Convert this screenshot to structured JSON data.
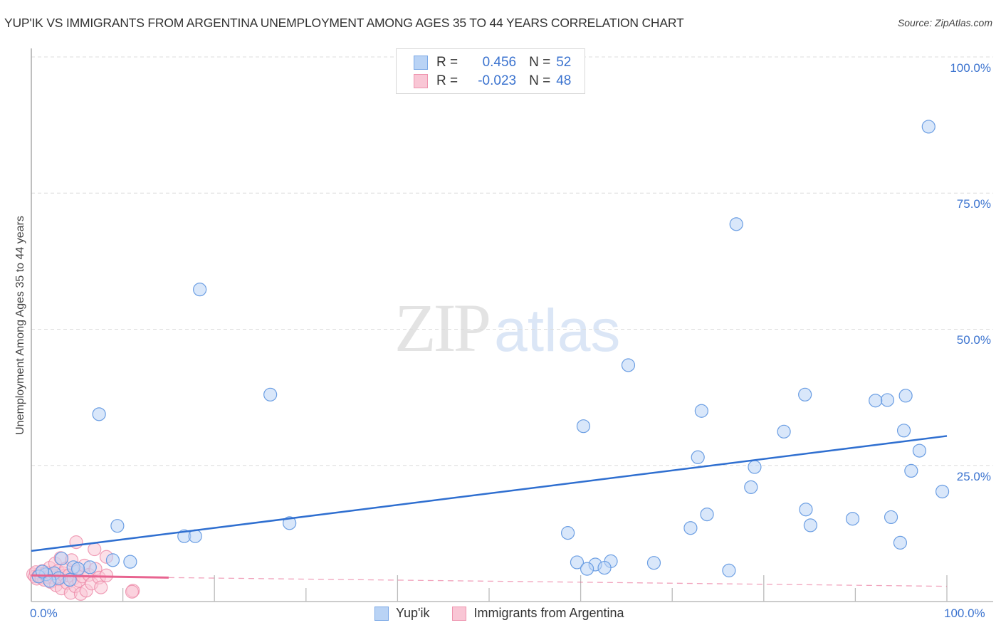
{
  "header": {
    "title": "YUP'IK VS IMMIGRANTS FROM ARGENTINA UNEMPLOYMENT AMONG AGES 35 TO 44 YEARS CORRELATION CHART",
    "source": "Source: ZipAtlas.com"
  },
  "watermark": {
    "zip": "ZIP",
    "atlas": "atlas"
  },
  "legend": {
    "rows": [
      {
        "swatch": "blue",
        "r_label": "R =",
        "r_value": "0.456",
        "n_label": "N =",
        "n_value": "52"
      },
      {
        "swatch": "pink",
        "r_label": "R =",
        "r_value": "-0.023",
        "n_label": "N =",
        "n_value": "48"
      }
    ]
  },
  "bottom_legend": [
    {
      "swatch": "blue",
      "label": "Yup'ik"
    },
    {
      "swatch": "pink",
      "label": "Immigrants from Argentina"
    }
  ],
  "axes": {
    "ylabel": "Unemployment Among Ages 35 to 44 years",
    "y_ticks": [
      "100.0%",
      "75.0%",
      "50.0%",
      "25.0%"
    ],
    "x_ticks": [
      "0.0%",
      "100.0%"
    ]
  },
  "colors": {
    "blue_fill": "#b9d3f5",
    "blue_stroke": "#6b9ee3",
    "blue_line": "#2f6fd0",
    "pink_fill": "#f9c6d5",
    "pink_stroke": "#ec8aa8",
    "pink_line": "#e86490",
    "tick_text": "#3b73cf"
  },
  "chart_data": {
    "type": "scatter",
    "title": "YUP'IK VS IMMIGRANTS FROM ARGENTINA UNEMPLOYMENT AMONG AGES 35 TO 44 YEARS CORRELATION CHART",
    "xlabel": "",
    "ylabel": "Unemployment Among Ages 35 to 44 years",
    "xlim": [
      0,
      100
    ],
    "ylim": [
      0,
      100
    ],
    "x_tick_labels": [
      "0.0%",
      "100.0%"
    ],
    "y_tick_labels": [
      "25.0%",
      "50.0%",
      "75.0%",
      "100.0%"
    ],
    "grid": true,
    "legend_position": "top-center",
    "series": [
      {
        "name": "Yup'ik",
        "color": "#6b9ee3",
        "R": 0.456,
        "N": 52,
        "trendline": {
          "x": [
            0,
            100
          ],
          "y": [
            9.3,
            30.4
          ],
          "style": "solid"
        },
        "points": [
          [
            98.0,
            87.2
          ],
          [
            77.0,
            69.3
          ],
          [
            18.4,
            57.3
          ],
          [
            65.2,
            43.4
          ],
          [
            26.1,
            38.0
          ],
          [
            84.5,
            38.0
          ],
          [
            93.5,
            37.0
          ],
          [
            92.2,
            36.9
          ],
          [
            95.5,
            37.8
          ],
          [
            73.2,
            35.0
          ],
          [
            7.4,
            34.4
          ],
          [
            60.3,
            32.2
          ],
          [
            82.2,
            31.2
          ],
          [
            95.3,
            31.4
          ],
          [
            97.0,
            27.7
          ],
          [
            72.8,
            26.5
          ],
          [
            79.0,
            24.7
          ],
          [
            96.1,
            24.0
          ],
          [
            78.6,
            21.0
          ],
          [
            99.5,
            20.2
          ],
          [
            84.6,
            16.9
          ],
          [
            73.8,
            16.0
          ],
          [
            89.7,
            15.2
          ],
          [
            93.9,
            15.5
          ],
          [
            28.2,
            14.4
          ],
          [
            9.4,
            13.9
          ],
          [
            85.1,
            14.0
          ],
          [
            72.0,
            13.5
          ],
          [
            58.6,
            12.6
          ],
          [
            16.7,
            12.0
          ],
          [
            17.9,
            12.0
          ],
          [
            94.9,
            10.8
          ],
          [
            63.3,
            7.4
          ],
          [
            59.6,
            7.2
          ],
          [
            8.9,
            7.6
          ],
          [
            10.8,
            7.3
          ],
          [
            68.0,
            7.1
          ],
          [
            61.6,
            6.8
          ],
          [
            62.6,
            6.2
          ],
          [
            76.2,
            5.7
          ],
          [
            60.7,
            6.0
          ],
          [
            3.3,
            7.9
          ],
          [
            4.6,
            6.3
          ],
          [
            6.4,
            6.3
          ],
          [
            5.1,
            6.0
          ],
          [
            2.5,
            5.2
          ],
          [
            1.6,
            5.0
          ],
          [
            0.8,
            4.6
          ],
          [
            3.0,
            4.3
          ],
          [
            4.2,
            4.0
          ],
          [
            2.0,
            3.8
          ],
          [
            1.2,
            5.5
          ]
        ]
      },
      {
        "name": "Immigrants from Argentina",
        "color": "#ec8aa8",
        "R": -0.023,
        "N": 48,
        "trendline": {
          "x": [
            0,
            15
          ],
          "y": [
            4.8,
            4.4
          ],
          "dashed_extension": {
            "x": [
              15,
              100
            ],
            "y": [
              4.4,
              2.8
            ]
          },
          "style": "solid-then-dashed"
        },
        "points": [
          [
            0.2,
            5.0
          ],
          [
            0.4,
            4.6
          ],
          [
            0.5,
            5.4
          ],
          [
            0.6,
            4.2
          ],
          [
            0.8,
            4.8
          ],
          [
            1.0,
            5.1
          ],
          [
            1.1,
            4.4
          ],
          [
            1.2,
            5.6
          ],
          [
            1.4,
            4.0
          ],
          [
            1.5,
            4.9
          ],
          [
            1.6,
            5.3
          ],
          [
            1.8,
            4.5
          ],
          [
            2.0,
            6.2
          ],
          [
            2.1,
            3.6
          ],
          [
            2.2,
            5.0
          ],
          [
            2.4,
            4.4
          ],
          [
            2.6,
            7.0
          ],
          [
            2.7,
            3.0
          ],
          [
            2.9,
            5.6
          ],
          [
            3.0,
            4.1
          ],
          [
            3.2,
            8.0
          ],
          [
            3.3,
            2.4
          ],
          [
            3.5,
            5.2
          ],
          [
            3.6,
            4.7
          ],
          [
            3.8,
            6.1
          ],
          [
            3.9,
            3.4
          ],
          [
            4.1,
            4.8
          ],
          [
            4.3,
            1.6
          ],
          [
            4.4,
            7.6
          ],
          [
            4.6,
            4.2
          ],
          [
            4.8,
            2.8
          ],
          [
            5.0,
            5.5
          ],
          [
            5.2,
            3.8
          ],
          [
            5.4,
            1.4
          ],
          [
            5.6,
            4.6
          ],
          [
            5.8,
            6.6
          ],
          [
            6.0,
            2.0
          ],
          [
            6.3,
            4.9
          ],
          [
            6.6,
            3.3
          ],
          [
            7.0,
            6.0
          ],
          [
            7.4,
            4.4
          ],
          [
            7.6,
            2.6
          ],
          [
            8.2,
            4.8
          ],
          [
            4.9,
            10.9
          ],
          [
            6.9,
            9.6
          ],
          [
            8.2,
            8.2
          ],
          [
            11.1,
            2.0
          ],
          [
            11.0,
            1.8
          ]
        ]
      }
    ]
  }
}
